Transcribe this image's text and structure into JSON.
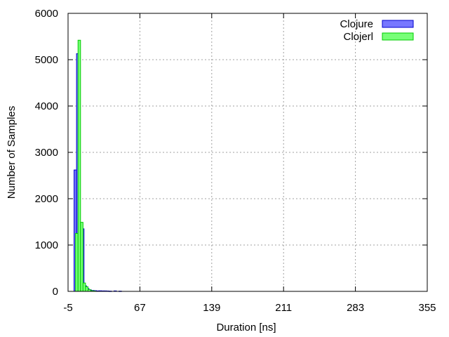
{
  "chart_data": {
    "type": "bar",
    "title": "",
    "xlabel": "Duration [ns]",
    "ylabel": "Number of Samples",
    "xlim": [
      -5,
      355
    ],
    "ylim": [
      0,
      6000
    ],
    "xticks": [
      -5,
      67,
      139,
      211,
      283,
      355
    ],
    "yticks": [
      0,
      1000,
      2000,
      3000,
      4000,
      5000,
      6000
    ],
    "grid": true,
    "legend_position": "top-right",
    "bin_width": 2.5,
    "series": [
      {
        "name": "Clojure",
        "color": "#7777ff",
        "edge": "#0000cc",
        "bins": [
          {
            "x": 2.25,
            "y": 2620
          },
          {
            "x": 4.75,
            "y": 5130
          },
          {
            "x": 7.25,
            "y": 650
          },
          {
            "x": 9.75,
            "y": 1350
          },
          {
            "x": 12.25,
            "y": 120
          },
          {
            "x": 14.75,
            "y": 60
          },
          {
            "x": 17.25,
            "y": 30
          },
          {
            "x": 19.75,
            "y": 20
          },
          {
            "x": 22.25,
            "y": 15
          },
          {
            "x": 24.75,
            "y": 10
          },
          {
            "x": 27.25,
            "y": 12
          },
          {
            "x": 29.75,
            "y": 10
          },
          {
            "x": 32.25,
            "y": 10
          },
          {
            "x": 34.75,
            "y": 8
          },
          {
            "x": 37.25,
            "y": 5
          },
          {
            "x": 42.25,
            "y": 10
          },
          {
            "x": 47.25,
            "y": 5
          }
        ]
      },
      {
        "name": "Clojerl",
        "color": "#77ff77",
        "edge": "#00cc00",
        "bins": [
          {
            "x": 3.75,
            "y": 1250
          },
          {
            "x": 6.25,
            "y": 5420
          },
          {
            "x": 8.75,
            "y": 1490
          },
          {
            "x": 11.25,
            "y": 180
          },
          {
            "x": 13.75,
            "y": 100
          },
          {
            "x": 16.25,
            "y": 40
          },
          {
            "x": 18.75,
            "y": 15
          },
          {
            "x": 21.25,
            "y": 8
          }
        ]
      }
    ]
  }
}
